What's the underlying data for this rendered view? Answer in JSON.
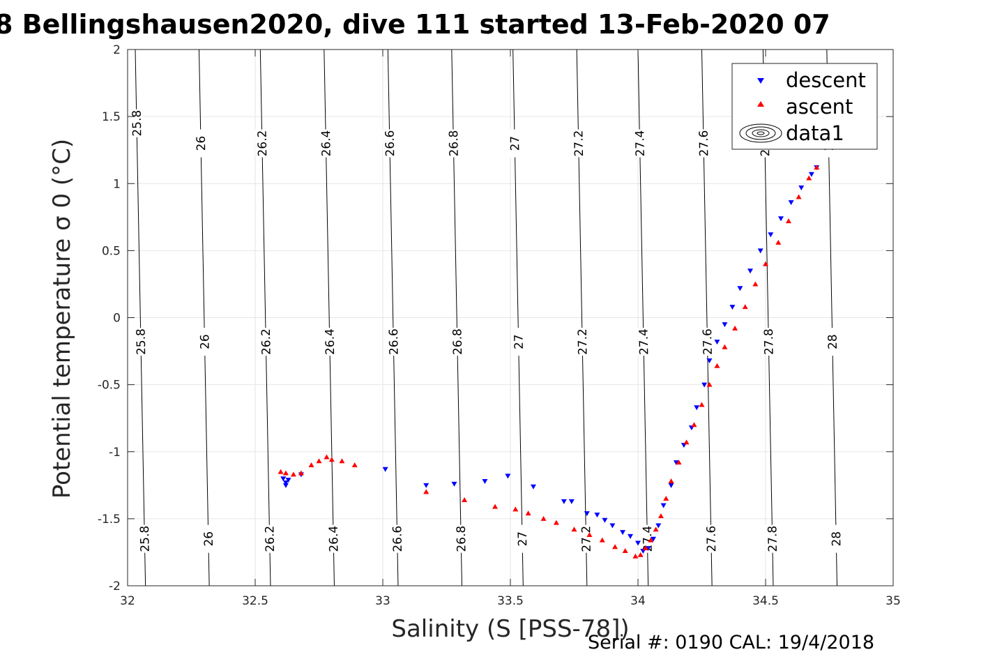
{
  "header": {
    "title": "8 Bellingshausen2020, dive 111 started 13-Feb-2020 07"
  },
  "footer": {
    "serial_text": "Serial #: 0190  CAL: 19/4/2018"
  },
  "colors": {
    "descent": "#0000ff",
    "ascent": "#ff0000",
    "contour": "#000000",
    "grid": "#e6e6e6",
    "axis": "#262626"
  },
  "chart_data": {
    "type": "scatter",
    "title": "8 Bellingshausen2020, dive 111 started 13-Feb-2020 07",
    "xlabel": "Salinity (S [PSS-78])",
    "ylabel": "Potential temperature σ 0 (°C)",
    "xlim": [
      32,
      35
    ],
    "ylim": [
      -2,
      2
    ],
    "xticks": [
      32,
      32.5,
      33,
      33.5,
      34,
      34.5,
      35
    ],
    "xtick_labels": [
      "32",
      "32.5",
      "33",
      "33.5",
      "34",
      "34.5",
      "35"
    ],
    "yticks": [
      -2,
      -1.5,
      -1,
      -0.5,
      0,
      0.5,
      1,
      1.5,
      2
    ],
    "ytick_labels": [
      "-2",
      "-1.5",
      "-1",
      "-0.5",
      "0",
      "0.5",
      "1",
      "1.5",
      "2"
    ],
    "grid": true,
    "legend_position": "top-right",
    "legend": [
      "descent",
      "ascent",
      "data1"
    ],
    "density_contours": {
      "name": "data1",
      "levels": [
        "25.8",
        "26",
        "26.2",
        "26.4",
        "26.6",
        "26.8",
        "27",
        "27.2",
        "27.4",
        "27.6",
        "27.8",
        "28"
      ],
      "lines": [
        {
          "level": 25.8,
          "s_at_bottom": 32.07,
          "s_at_top": 32.03
        },
        {
          "level": 26.0,
          "s_at_bottom": 32.32,
          "s_at_top": 32.28
        },
        {
          "level": 26.2,
          "s_at_bottom": 32.56,
          "s_at_top": 32.52
        },
        {
          "level": 26.4,
          "s_at_bottom": 32.81,
          "s_at_top": 32.77
        },
        {
          "level": 26.6,
          "s_at_bottom": 33.06,
          "s_at_top": 33.02
        },
        {
          "level": 26.8,
          "s_at_bottom": 33.31,
          "s_at_top": 33.27
        },
        {
          "level": 27.0,
          "s_at_bottom": 33.55,
          "s_at_top": 33.51
        },
        {
          "level": 27.2,
          "s_at_bottom": 33.8,
          "s_at_top": 33.76
        },
        {
          "level": 27.4,
          "s_at_bottom": 34.04,
          "s_at_top": 34.0
        },
        {
          "level": 27.6,
          "s_at_bottom": 34.29,
          "s_at_top": 34.25
        },
        {
          "level": 27.8,
          "s_at_bottom": 34.53,
          "s_at_top": 34.49
        },
        {
          "level": 28.0,
          "s_at_bottom": 34.78,
          "s_at_top": 34.74
        }
      ]
    },
    "series": [
      {
        "name": "descent",
        "marker": "triangle-down",
        "color": "#0000ff",
        "x": [
          32.61,
          32.62,
          32.62,
          32.63,
          32.68,
          33.01,
          33.17,
          33.28,
          33.4,
          33.49,
          33.59,
          33.71,
          33.74,
          33.8,
          33.84,
          33.87,
          33.9,
          33.94,
          33.97,
          34.0,
          34.02,
          34.04,
          34.06,
          34.08,
          34.1,
          34.13,
          34.15,
          34.18,
          34.21,
          34.23,
          34.26,
          34.28,
          34.31,
          34.34,
          34.37,
          34.4,
          34.44,
          34.48,
          34.52,
          34.56,
          34.6,
          34.64,
          34.68,
          34.7
        ],
        "y": [
          -1.2,
          -1.23,
          -1.25,
          -1.21,
          -1.17,
          -1.13,
          -1.25,
          -1.24,
          -1.22,
          -1.18,
          -1.26,
          -1.37,
          -1.37,
          -1.46,
          -1.47,
          -1.51,
          -1.55,
          -1.6,
          -1.63,
          -1.68,
          -1.74,
          -1.72,
          -1.65,
          -1.55,
          -1.4,
          -1.25,
          -1.08,
          -0.95,
          -0.82,
          -0.67,
          -0.5,
          -0.32,
          -0.18,
          -0.05,
          0.08,
          0.22,
          0.35,
          0.5,
          0.62,
          0.74,
          0.86,
          0.97,
          1.07,
          1.12
        ]
      },
      {
        "name": "ascent",
        "marker": "triangle-up",
        "color": "#ff0000",
        "x": [
          32.6,
          32.62,
          32.65,
          32.68,
          32.72,
          32.75,
          32.78,
          32.8,
          32.84,
          32.89,
          33.17,
          33.32,
          33.44,
          33.52,
          33.57,
          33.63,
          33.68,
          33.75,
          33.81,
          33.86,
          33.91,
          33.95,
          33.99,
          34.01,
          34.03,
          34.05,
          34.07,
          34.09,
          34.11,
          34.13,
          34.16,
          34.19,
          34.22,
          34.25,
          34.28,
          34.31,
          34.34,
          34.38,
          34.42,
          34.46,
          34.5,
          34.55,
          34.59,
          34.63,
          34.67,
          34.7
        ],
        "y": [
          -1.15,
          -1.16,
          -1.17,
          -1.16,
          -1.1,
          -1.07,
          -1.04,
          -1.06,
          -1.07,
          -1.1,
          -1.3,
          -1.36,
          -1.41,
          -1.43,
          -1.46,
          -1.5,
          -1.53,
          -1.58,
          -1.62,
          -1.66,
          -1.71,
          -1.74,
          -1.78,
          -1.77,
          -1.72,
          -1.66,
          -1.58,
          -1.48,
          -1.35,
          -1.22,
          -1.08,
          -0.93,
          -0.8,
          -0.65,
          -0.5,
          -0.36,
          -0.22,
          -0.08,
          0.08,
          0.25,
          0.4,
          0.56,
          0.72,
          0.9,
          1.04,
          1.12
        ]
      }
    ]
  }
}
